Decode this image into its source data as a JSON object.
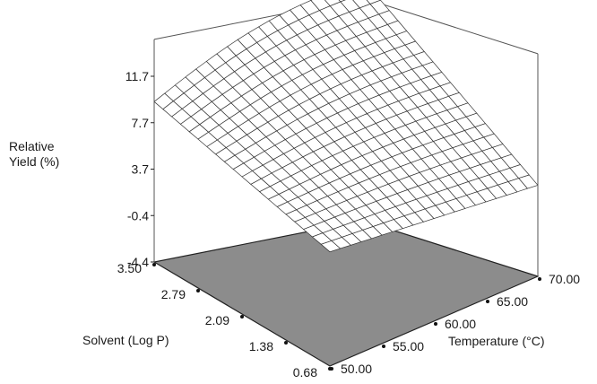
{
  "chart_data": {
    "type": "surface",
    "zlabel_lines": [
      "Relative",
      "Yield (%)"
    ],
    "xlabel": "Solvent (Log P)",
    "ylabel": "Temperature (°C)",
    "z_ticks": [
      "11.7",
      "7.7",
      "3.7",
      "-0.4",
      "-4.4"
    ],
    "x_ticks": [
      "3.50",
      "2.79",
      "2.09",
      "1.38",
      "0.68"
    ],
    "y_ticks": [
      "50.00",
      "55.00",
      "60.00",
      "65.00",
      "70.00"
    ],
    "xlim": [
      0.68,
      3.5
    ],
    "ylim": [
      50,
      70
    ],
    "zlim": [
      -4.4,
      11.7
    ],
    "grid_size": 20,
    "surface_corners": {
      "solvent_3.50_temp_50": 9.5,
      "solvent_3.50_temp_70": 16.5,
      "solvent_0.68_temp_50": 5.5,
      "solvent_0.68_temp_70": 3.5
    },
    "floor_color": "#8c8c8c",
    "mesh_color": "#333333"
  }
}
